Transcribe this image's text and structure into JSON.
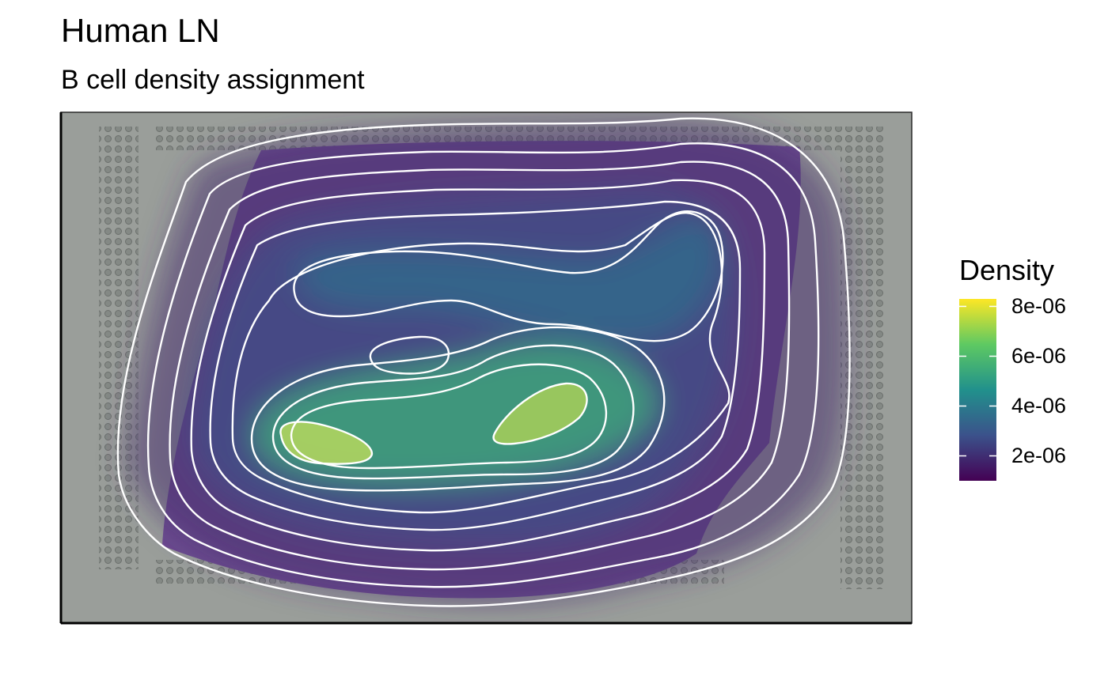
{
  "chart_data": {
    "type": "heatmap",
    "title": "Human LN",
    "subtitle": "B cell density assignment",
    "xlabel": "",
    "ylabel": "",
    "axes_visible": false,
    "grid": false,
    "background": "H&E tissue image (lymph node section)",
    "contours": {
      "color": "#ffffff",
      "peaks": [
        {
          "label": "peak-left",
          "level": 8e-06
        },
        {
          "label": "peak-right",
          "level": 8e-06
        },
        {
          "label": "peak-center",
          "level": 4e-06
        },
        {
          "label": "peak-upper-right",
          "level": 3.5e-06
        }
      ]
    },
    "legend": {
      "title": "Density",
      "placement": "right",
      "colormap": "viridis",
      "colors": [
        "#440154",
        "#3b528b",
        "#21918c",
        "#5ec962",
        "#fde725"
      ],
      "range": [
        1e-06,
        8.3e-06
      ],
      "ticks": [
        {
          "value": 8e-06,
          "label": "8e-06"
        },
        {
          "value": 6e-06,
          "label": "6e-06"
        },
        {
          "value": 4e-06,
          "label": "4e-06"
        },
        {
          "value": 2e-06,
          "label": "2e-06"
        }
      ]
    }
  }
}
